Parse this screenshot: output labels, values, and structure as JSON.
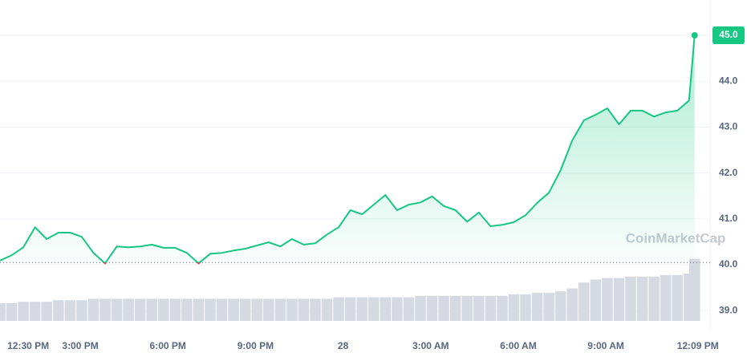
{
  "chart_data": {
    "type": "line",
    "watermark": "CoinMarketCap",
    "x": [
      0.25,
      0.65,
      1.05,
      1.45,
      1.85,
      2.25,
      2.65,
      3.05,
      3.45,
      3.85,
      4.25,
      4.65,
      5.05,
      5.45,
      5.85,
      6.25,
      6.65,
      7.05,
      7.45,
      7.85,
      8.25,
      8.65,
      9.05,
      9.45,
      9.85,
      10.25,
      10.65,
      11.05,
      11.45,
      11.85,
      12.25,
      12.65,
      13.05,
      13.45,
      13.85,
      14.25,
      14.65,
      15.05,
      15.45,
      15.85,
      16.25,
      16.65,
      17.05,
      17.45,
      17.85,
      18.25,
      18.65,
      19.05,
      19.45,
      19.85,
      20.25,
      20.65,
      21.05,
      21.45,
      21.85,
      22.25,
      22.65,
      23.05,
      23.45,
      23.85,
      24.04
    ],
    "series": [
      {
        "color": "#16c784",
        "below_color": "#ea3943",
        "values": [
          40.09,
          40.21,
          40.38,
          40.82,
          40.56,
          40.7,
          40.7,
          40.61,
          40.26,
          40.03,
          40.4,
          40.38,
          40.4,
          40.44,
          40.37,
          40.37,
          40.26,
          40.03,
          40.24,
          40.26,
          40.31,
          40.35,
          40.42,
          40.49,
          40.4,
          40.56,
          40.44,
          40.47,
          40.66,
          40.82,
          41.19,
          41.1,
          41.31,
          41.52,
          41.19,
          41.31,
          41.36,
          41.49,
          41.28,
          41.19,
          40.94,
          41.14,
          40.84,
          40.87,
          40.93,
          41.08,
          41.35,
          41.57,
          42.06,
          42.71,
          43.15,
          43.27,
          43.41,
          43.06,
          43.36,
          43.36,
          43.23,
          43.32,
          43.36,
          43.58,
          45.0
        ],
        "current_label": "45.0"
      }
    ],
    "volume": {
      "color": "#d5d9e2",
      "values": [
        12,
        12,
        13,
        13,
        13,
        14,
        14,
        14,
        15,
        15,
        15,
        15,
        15,
        15,
        15,
        15,
        15,
        15,
        15,
        15,
        15,
        15,
        15,
        15,
        15,
        15,
        15,
        15,
        15,
        16,
        16,
        16,
        16,
        16,
        16,
        16,
        17,
        17,
        17,
        17,
        17,
        17,
        17,
        17,
        18,
        18,
        19,
        19,
        20,
        22,
        26,
        28,
        29,
        29,
        30,
        30,
        30,
        31,
        31,
        32,
        42
      ],
      "vlim": [
        0,
        220
      ]
    },
    "baseline": 40.05,
    "xlim": [
      0.25,
      24.57
    ],
    "xticks": [
      {
        "value": 0.5,
        "label": "12:30 PM"
      },
      {
        "value": 3,
        "label": "3:00 PM"
      },
      {
        "value": 6,
        "label": "6:00 PM"
      },
      {
        "value": 9,
        "label": "9:00 PM"
      },
      {
        "value": 12,
        "label": "28"
      },
      {
        "value": 15,
        "label": "3:00 AM"
      },
      {
        "value": 18,
        "label": "6:00 AM"
      },
      {
        "value": 21,
        "label": "9:00 AM"
      },
      {
        "value": 24.15,
        "label": "12:09 PM"
      }
    ],
    "ylim": [
      38.69,
      45.77
    ],
    "yticks": [
      {
        "value": 39,
        "label": "39.0"
      },
      {
        "value": 40,
        "label": "40.0"
      },
      {
        "value": 41,
        "label": "41.0"
      },
      {
        "value": 42,
        "label": "42.0"
      },
      {
        "value": 43,
        "label": "43.0"
      },
      {
        "value": 44,
        "label": "44.0"
      },
      {
        "value": 45,
        "label": "45.0"
      }
    ],
    "grid": true
  }
}
